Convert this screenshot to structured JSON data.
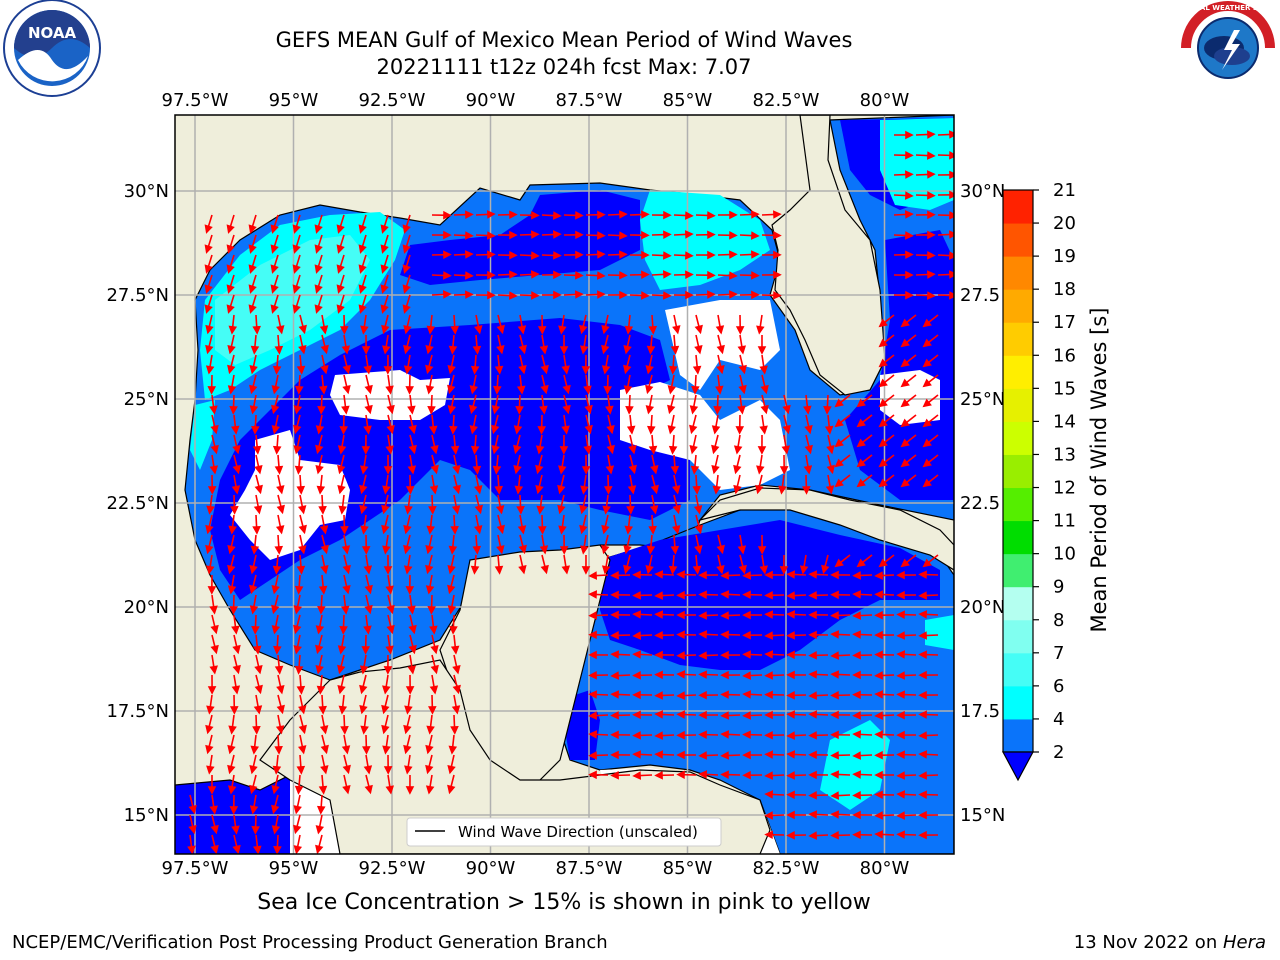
{
  "title": {
    "line1": "GEFS MEAN Gulf of Mexico Mean Period of Wind Waves",
    "line2": "20221111 t12z 024h fcst   Max: 7.07"
  },
  "map": {
    "lon_ticks": [
      "97.5°W",
      "95°W",
      "92.5°W",
      "90°W",
      "87.5°W",
      "85°W",
      "82.5°W",
      "80°W"
    ],
    "lat_ticks_left": [
      "30°N",
      "27.5°N",
      "25°N",
      "22.5°N",
      "20°N",
      "17.5°N",
      "15°N"
    ],
    "lat_ticks_right": [
      "30°N",
      "27.5",
      "25°N",
      "22.5",
      "20°N",
      "17.5",
      "15°N"
    ],
    "legend_label": "Wind Wave Direction (unscaled)",
    "colors": {
      "land": "#efeedb",
      "ocean_white": "#ffffff",
      "arrow": "#ff0000",
      "grid": "#b0b0b0"
    }
  },
  "colorbar": {
    "label": "Mean Period of Wind Waves [s]",
    "ticks": [
      "2",
      "4",
      "6",
      "7",
      "8",
      "9",
      "10",
      "11",
      "12",
      "13",
      "14",
      "15",
      "16",
      "17",
      "18",
      "19",
      "20",
      "21"
    ],
    "colors": [
      "#0a74fa",
      "#00ffff",
      "#45fdf6",
      "#80fff0",
      "#b4fff0",
      "#40ee70",
      "#00dd00",
      "#55ee00",
      "#99ee00",
      "#ccff00",
      "#e6f000",
      "#ffee00",
      "#ffcc00",
      "#ffaa00",
      "#ff8800",
      "#ff5500",
      "#ff2200",
      "#ff0000"
    ],
    "extend_color": "#0000ff"
  },
  "ice_note": "Sea Ice Concentration > 15% is shown in pink to yellow",
  "footer": {
    "left": "NCEP/EMC/Verification Post Processing Product Generation Branch",
    "right_date": "13 Nov 2022 on ",
    "right_machine": "Hera"
  },
  "logos": {
    "noaa_text": "NOAA",
    "nws_text": "NATIONAL WEATHER SERVICE"
  }
}
